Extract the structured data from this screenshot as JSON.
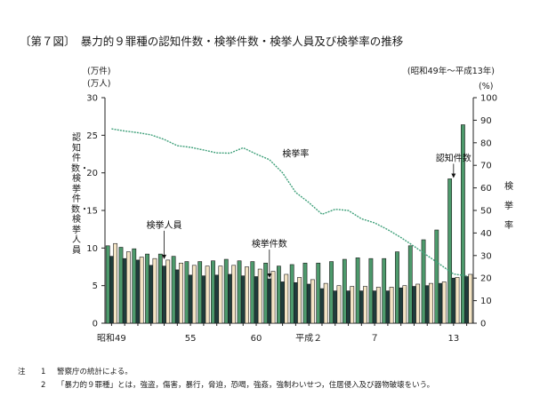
{
  "header": {
    "title": "〔第７図〕　暴力的９罪種の認知件数・検挙件数・検挙人員及び検挙率の推移",
    "period": "(昭和49年～平成13年)"
  },
  "axis_units": {
    "left_line1": "(万件)",
    "left_line2": "(万人)",
    "right": "(%)"
  },
  "side_labels": {
    "left": "認知件数・検挙件数・検挙人員",
    "right": "検挙率"
  },
  "notes": {
    "label": "注",
    "items": [
      {
        "num": "1",
        "text": "警察庁の統計による。"
      },
      {
        "num": "2",
        "text": "「暴力的９罪種」とは，強盗，傷害，暴行，脅迫，恐喝，強姦，強制わいせつ，住居侵入及び器物破壊をいう。"
      }
    ]
  },
  "chart_data": {
    "type": "bar",
    "x_tick_labels": [
      {
        "index": 0,
        "label": "昭和49"
      },
      {
        "index": 6,
        "label": "55"
      },
      {
        "index": 11,
        "label": "60"
      },
      {
        "index": 15,
        "label": "平成２"
      },
      {
        "index": 20,
        "label": "７"
      },
      {
        "index": 26,
        "label": "13"
      }
    ],
    "y_left": {
      "min": 0,
      "max": 30,
      "ticks": [
        0,
        5,
        10,
        15,
        20,
        25,
        30
      ]
    },
    "y_right": {
      "min": 0,
      "max": 100,
      "ticks": [
        0,
        10,
        20,
        30,
        40,
        50,
        60,
        70,
        80,
        90,
        100
      ]
    },
    "series": [
      {
        "name": "認知件数",
        "axis": "left",
        "color": "#4d9a6c",
        "values": [
          10.3,
          10.1,
          9.9,
          9.2,
          9.2,
          8.9,
          8.2,
          8.2,
          8.3,
          8.5,
          8.3,
          8.2,
          8.0,
          7.6,
          7.8,
          8.0,
          8.0,
          8.2,
          8.5,
          8.7,
          8.6,
          8.6,
          9.5,
          10.3,
          11.1,
          12.4,
          19.2,
          26.4
        ]
      },
      {
        "name": "検挙件数",
        "axis": "left",
        "color": "#1f3c3c",
        "values": [
          8.9,
          8.6,
          8.4,
          7.7,
          7.6,
          7.1,
          6.4,
          6.3,
          6.4,
          6.5,
          6.3,
          6.2,
          5.9,
          5.5,
          5.4,
          5.2,
          4.6,
          4.3,
          4.3,
          4.3,
          4.3,
          4.3,
          4.7,
          4.9,
          5.0,
          5.3,
          6.0,
          6.2
        ]
      },
      {
        "name": "検挙人員",
        "axis": "left",
        "color": "#f4e4c4",
        "values": [
          10.6,
          9.5,
          8.8,
          8.6,
          8.4,
          8.0,
          7.7,
          7.6,
          7.6,
          7.7,
          7.5,
          7.2,
          6.9,
          6.5,
          6.1,
          5.8,
          5.3,
          5.0,
          4.9,
          4.9,
          4.8,
          4.8,
          5.0,
          5.2,
          5.3,
          5.5,
          6.1,
          6.5
        ]
      },
      {
        "name": "検挙率",
        "axis": "right",
        "type": "line",
        "color": "#3fa07a",
        "values": [
          86.2,
          85.2,
          84.5,
          83.5,
          81.5,
          78.7,
          78.0,
          76.8,
          75.5,
          75.4,
          77.8,
          75.0,
          72.5,
          66.7,
          58.0,
          53.5,
          48.3,
          50.5,
          50.0,
          46.3,
          44.5,
          41.5,
          38.0,
          34.1,
          30.0,
          26.0,
          21.8,
          21.0
        ]
      }
    ],
    "annotations": [
      {
        "text": "検挙人員",
        "target_series": 2,
        "target_index": 4
      },
      {
        "text": "検挙件数",
        "target_series": 1,
        "target_index": 12
      },
      {
        "text": "検挙率",
        "target_series": 3,
        "target_index": 14
      },
      {
        "text": "認知件数",
        "target_series": 0,
        "target_index": 26
      }
    ]
  }
}
